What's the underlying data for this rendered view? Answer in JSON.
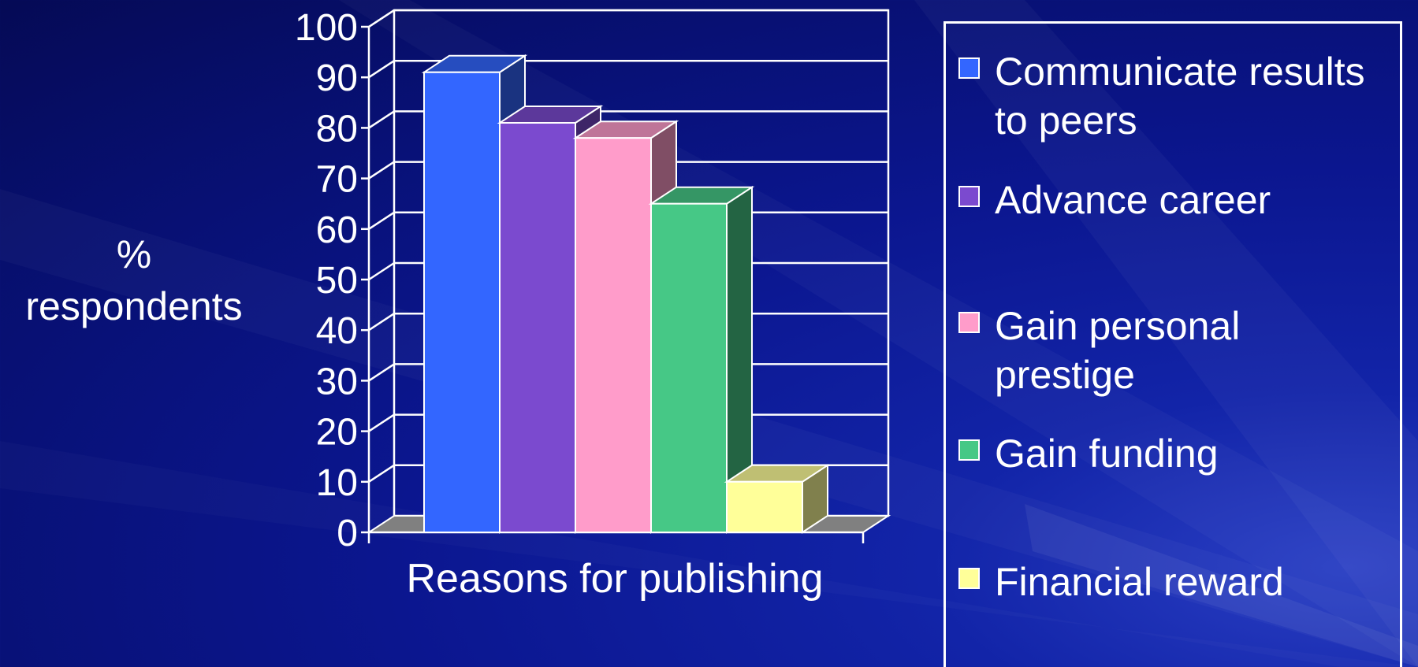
{
  "chart_data": {
    "type": "bar",
    "title": "",
    "xlabel": "Reasons for publishing",
    "ylabel": "% respondents",
    "ylim": [
      0,
      100
    ],
    "yticks": [
      "0",
      "10",
      "20",
      "30",
      "40",
      "50",
      "60",
      "70",
      "80",
      "90",
      "100"
    ],
    "grid": true,
    "legend_position": "right",
    "three_d": true,
    "categories": [
      ""
    ],
    "series": [
      {
        "name": "Communicate results to peers",
        "values": [
          91
        ],
        "color": "#3366ff"
      },
      {
        "name": "Advance career",
        "values": [
          81
        ],
        "color": "#7b4acf"
      },
      {
        "name": "Gain personal prestige",
        "values": [
          78
        ],
        "color": "#ff9cca"
      },
      {
        "name": "Gain funding",
        "values": [
          65
        ],
        "color": "#46c886"
      },
      {
        "name": "Financial reward",
        "values": [
          10
        ],
        "color": "#ffff99"
      }
    ]
  },
  "colors": {
    "background": "#0b168f",
    "gridline": "#ffffff",
    "floor": "#808080"
  }
}
